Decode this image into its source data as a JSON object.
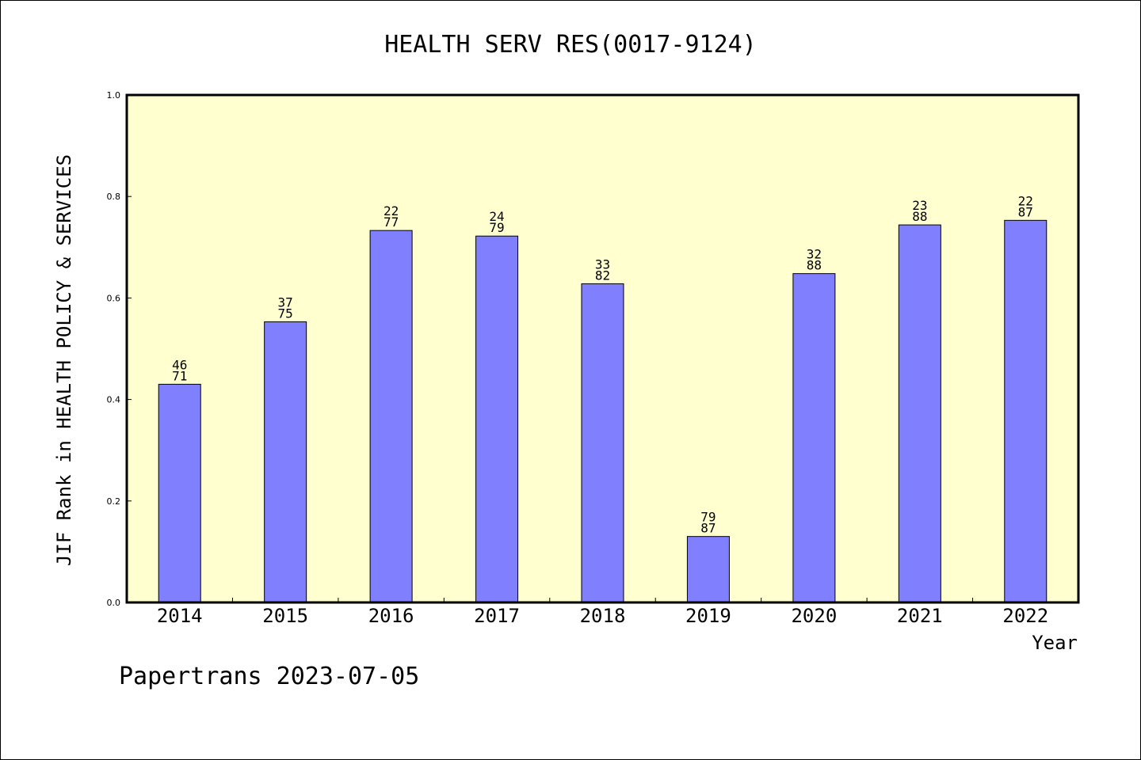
{
  "chart_data": {
    "type": "bar",
    "title": "HEALTH SERV RES(0017-9124)",
    "xlabel": "Year",
    "ylabel": "JIF Rank in HEALTH POLICY & SERVICES",
    "ylim": [
      0,
      1.0
    ],
    "yticks": [
      "0.0",
      "0.2",
      "0.4",
      "0.6",
      "0.8",
      "1.0"
    ],
    "categories": [
      "2014",
      "2015",
      "2016",
      "2017",
      "2018",
      "2019",
      "2020",
      "2021",
      "2022"
    ],
    "values": [
      0.43,
      0.553,
      0.733,
      0.722,
      0.628,
      0.13,
      0.648,
      0.744,
      0.753
    ],
    "labels_top": [
      "46",
      "37",
      "22",
      "24",
      "33",
      "79",
      "32",
      "23",
      "22"
    ],
    "labels_bottom": [
      "71",
      "75",
      "77",
      "79",
      "82",
      "87",
      "88",
      "88",
      "87"
    ],
    "grid": false,
    "colors": {
      "plot_background": "#ffffd0",
      "bar_fill": "#8080ff",
      "bar_stroke": "#000000"
    }
  },
  "footer": "Papertrans 2023-07-05"
}
